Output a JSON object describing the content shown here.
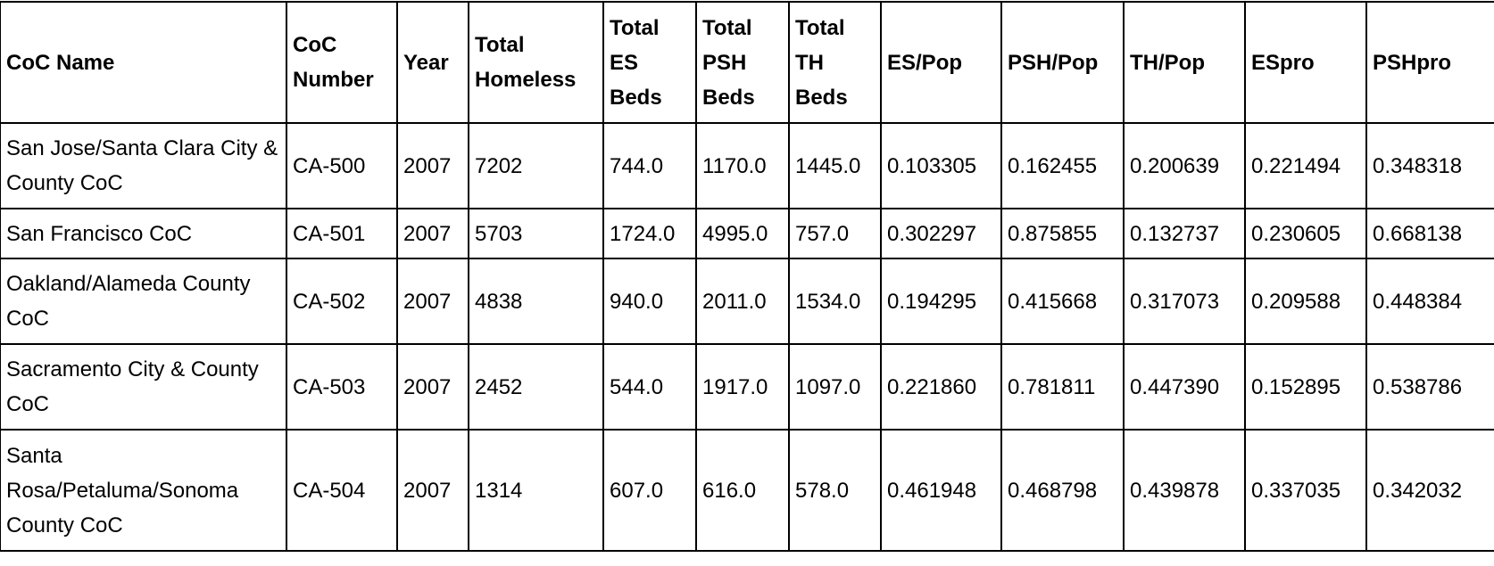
{
  "table": {
    "columns": [
      "CoC Name",
      "CoC Number",
      "Year",
      "Total Homeless",
      "Total ES Beds",
      "Total PSH Beds",
      "Total TH Beds",
      "ES/Pop",
      "PSH/Pop",
      "TH/Pop",
      "ESpro",
      "PSHpro"
    ],
    "rows": [
      [
        "San Jose/Santa Clara City & County CoC",
        "CA-500",
        "2007",
        "7202",
        "744.0",
        "1170.0",
        "1445.0",
        "0.103305",
        "0.162455",
        "0.200639",
        "0.221494",
        "0.348318"
      ],
      [
        "San Francisco CoC",
        "CA-501",
        "2007",
        "5703",
        "1724.0",
        "4995.0",
        "757.0",
        "0.302297",
        "0.875855",
        "0.132737",
        "0.230605",
        "0.668138"
      ],
      [
        "Oakland/Alameda County CoC",
        "CA-502",
        "2007",
        "4838",
        "940.0",
        "2011.0",
        "1534.0",
        "0.194295",
        "0.415668",
        "0.317073",
        "0.209588",
        "0.448384"
      ],
      [
        "Sacramento City & County CoC",
        "CA-503",
        "2007",
        "2452",
        "544.0",
        "1917.0",
        "1097.0",
        "0.221860",
        "0.781811",
        "0.447390",
        "0.152895",
        "0.538786"
      ],
      [
        "Santa Rosa/Petaluma/Sonoma County CoC",
        "CA-504",
        "2007",
        "1314",
        "607.0",
        "616.0",
        "578.0",
        "0.461948",
        "0.468798",
        "0.439878",
        "0.337035",
        "0.342032"
      ]
    ]
  }
}
